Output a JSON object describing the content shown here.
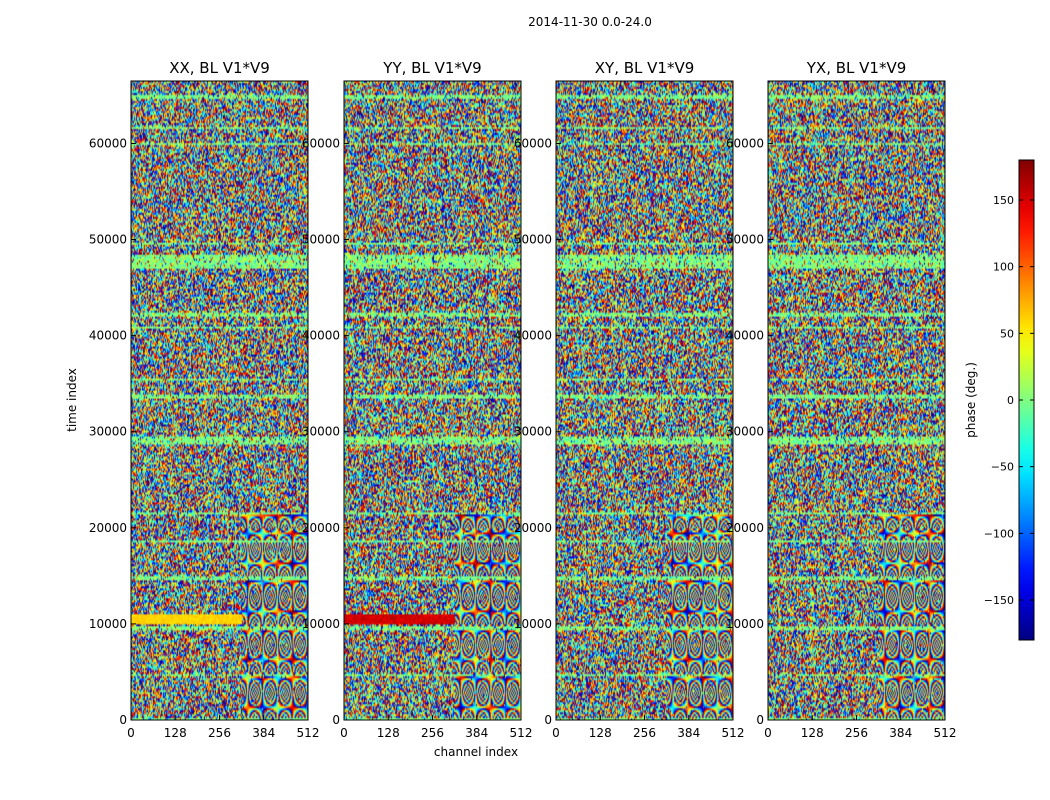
{
  "figure_title": "2014-11-30 0.0-24.0",
  "chart_data": {
    "type": "heatmap",
    "xlabel": "channel index",
    "ylabel": "time index",
    "xlim": [
      0,
      512
    ],
    "ylim": [
      0,
      66500
    ],
    "xticks": [
      0,
      128,
      256,
      384,
      512
    ],
    "yticks": [
      0,
      10000,
      20000,
      30000,
      40000,
      50000,
      60000
    ],
    "colormap": "jet",
    "panels": [
      {
        "title": "XX, BL V1*V9",
        "polarization": "XX",
        "baseline": "V1*V9"
      },
      {
        "title": "YY, BL V1*V9",
        "polarization": "YY",
        "baseline": "V1*V9"
      },
      {
        "title": "XY, BL V1*V9",
        "polarization": "XY",
        "baseline": "V1*V9"
      },
      {
        "title": "YX, BL V1*V9",
        "polarization": "YX",
        "baseline": "V1*V9"
      }
    ],
    "colorbar": {
      "label": "phase (deg.)",
      "range": [
        -180,
        180
      ],
      "ticks": [
        -150,
        -100,
        -50,
        0,
        50,
        100,
        150
      ]
    },
    "features": {
      "flagged_time_bands": [
        [
          0,
          300
        ],
        [
          4500,
          4800
        ],
        [
          9400,
          9800
        ],
        [
          14600,
          14900
        ],
        [
          18400,
          18700
        ],
        [
          21500,
          21700
        ],
        [
          28700,
          29500
        ],
        [
          33500,
          33800
        ],
        [
          35300,
          35600
        ],
        [
          40700,
          41000
        ],
        [
          42000,
          42300
        ],
        [
          46900,
          48400
        ],
        [
          49500,
          49700
        ],
        [
          59800,
          60100
        ],
        [
          61600,
          61800
        ],
        [
          64600,
          65000
        ]
      ],
      "coherent_fringe_region": {
        "channel_start": 320,
        "channel_end": 512,
        "time_start": 0,
        "time_end": 21500
      },
      "xx_phase_band_deg": 60,
      "yy_phase_band_deg": 150,
      "phase_band_time": [
        10000,
        11100
      ]
    }
  }
}
